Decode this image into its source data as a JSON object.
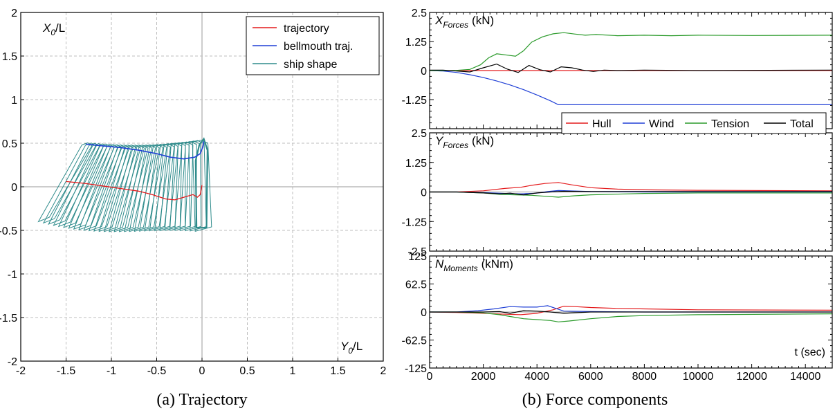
{
  "chart_data": [
    {
      "type": "line",
      "caption": "(a) Trajectory",
      "ylabel_main": "X",
      "ylabel_sub": "0",
      "ylabel_tail": "/L",
      "xlabel_main": "Y",
      "xlabel_sub": "0",
      "xlabel_tail": "/L",
      "xlim": [
        -2,
        2
      ],
      "ylim": [
        -2,
        2
      ],
      "xticks": [
        -2,
        -1.5,
        -1,
        -0.5,
        0,
        0.5,
        1,
        1.5,
        2
      ],
      "yticks": [
        -2,
        -1.5,
        -1,
        -0.5,
        0,
        0.5,
        1,
        1.5,
        2
      ],
      "grid": true,
      "legend_position": "top-right",
      "series": [
        {
          "name": "trajectory",
          "color": "#e41a1c",
          "x": [
            -1.5,
            -1.3,
            -1.1,
            -0.9,
            -0.7,
            -0.55,
            -0.4,
            -0.3,
            -0.2,
            -0.1,
            -0.05,
            -0.02,
            0.0
          ],
          "y": [
            0.06,
            0.04,
            0.01,
            -0.02,
            -0.05,
            -0.09,
            -0.14,
            -0.15,
            -0.12,
            -0.09,
            -0.12,
            -0.09,
            0.02
          ]
        },
        {
          "name": "bellmouth traj.",
          "color": "#1f3fd6",
          "x": [
            -1.28,
            -1.1,
            -0.9,
            -0.7,
            -0.5,
            -0.35,
            -0.2,
            -0.08,
            -0.02,
            0.01,
            0.02
          ],
          "y": [
            0.49,
            0.47,
            0.45,
            0.42,
            0.38,
            0.34,
            0.32,
            0.34,
            0.38,
            0.46,
            0.52
          ]
        },
        {
          "name": "ship shape",
          "color": "#2e8b8b",
          "bow": {
            "x": [
              -1.28,
              -0.03
            ],
            "y": [
              0.5,
              0.53
            ]
          },
          "stern": {
            "x": [
              -1.78,
              -0.02
            ],
            "y": [
              -0.36,
              -0.47
            ]
          },
          "frames": 32
        }
      ]
    },
    {
      "type": "line",
      "caption": "(b) Force components",
      "xlabel": "t (sec)",
      "xlim": [
        0,
        15000
      ],
      "xticks": [
        0,
        2000,
        4000,
        6000,
        8000,
        10000,
        12000,
        14000
      ],
      "legend_position": "top-right",
      "legend": [
        {
          "name": "Hull",
          "color": "#e41a1c"
        },
        {
          "name": "Wind",
          "color": "#1f3fd6"
        },
        {
          "name": "Tension",
          "color": "#2a9a2a"
        },
        {
          "name": "Total",
          "color": "#000000"
        }
      ],
      "panels": [
        {
          "title_main": "X",
          "title_sub": "Forces",
          "title_unit": "(kN)",
          "ylim": [
            -2.5,
            2.5
          ],
          "yticks": [
            -2.5,
            -1.25,
            0,
            1.25,
            2.5
          ],
          "ytick_labels": [
            "",
            "-1.25",
            "0",
            "1.25",
            "2.5"
          ],
          "series": [
            {
              "name": "Hull",
              "color": "#e41a1c",
              "t": [
                0,
                500,
                1000,
                2000,
                3000,
                5000,
                8000,
                15000
              ],
              "v": [
                0,
                0,
                0,
                0,
                0,
                0,
                0,
                0
              ]
            },
            {
              "name": "Wind",
              "color": "#1f3fd6",
              "t": [
                0,
                500,
                1000,
                1500,
                2000,
                2500,
                3000,
                3500,
                4000,
                4500,
                4800,
                6000,
                10000,
                15000
              ],
              "v": [
                0,
                -0.02,
                -0.08,
                -0.18,
                -0.3,
                -0.45,
                -0.62,
                -0.82,
                -1.05,
                -1.3,
                -1.47,
                -1.47,
                -1.47,
                -1.47
              ]
            },
            {
              "name": "Tension",
              "color": "#2a9a2a",
              "t": [
                0,
                500,
                1000,
                1500,
                1900,
                2200,
                2500,
                2800,
                3200,
                3500,
                3800,
                4200,
                4600,
                5000,
                5400,
                5800,
                6200,
                7000,
                8000,
                9000,
                10000,
                12000,
                15000
              ],
              "v": [
                0,
                0,
                0.01,
                0.05,
                0.25,
                0.55,
                0.72,
                0.68,
                0.62,
                0.85,
                1.22,
                1.45,
                1.58,
                1.63,
                1.57,
                1.52,
                1.55,
                1.5,
                1.52,
                1.5,
                1.52,
                1.51,
                1.52
              ]
            },
            {
              "name": "Total",
              "color": "#000000",
              "t": [
                0,
                500,
                1000,
                1500,
                2000,
                2500,
                2900,
                3300,
                3700,
                4100,
                4500,
                4900,
                5300,
                5700,
                6100,
                6500,
                7000,
                8000,
                10000,
                15000
              ],
              "v": [
                0.02,
                0.02,
                -0.02,
                -0.06,
                0.12,
                0.28,
                0.06,
                -0.08,
                0.22,
                0.04,
                -0.06,
                0.16,
                0.12,
                0.02,
                -0.04,
                0.02,
                0.0,
                0.02,
                0.0,
                0.02
              ]
            }
          ]
        },
        {
          "title_main": "Y",
          "title_sub": "Forces",
          "title_unit": "(kN)",
          "ylim": [
            -2.5,
            2.5
          ],
          "yticks": [
            -2.5,
            -1.25,
            0,
            1.25,
            2.5
          ],
          "ytick_labels": [
            "-2.5",
            "-1.25",
            "0",
            "1.25",
            "2.5"
          ],
          "series": [
            {
              "name": "Hull",
              "color": "#e41a1c",
              "t": [
                0,
                1000,
                2000,
                2800,
                3400,
                3800,
                4300,
                4800,
                5300,
                6000,
                7000,
                8000,
                10000,
                15000
              ],
              "v": [
                0,
                0,
                0.05,
                0.15,
                0.2,
                0.28,
                0.36,
                0.4,
                0.3,
                0.18,
                0.12,
                0.09,
                0.07,
                0.05
              ]
            },
            {
              "name": "Wind",
              "color": "#1f3fd6",
              "t": [
                0,
                1000,
                2000,
                2800,
                3400,
                4000,
                4400,
                4800,
                5200,
                6000,
                8000,
                15000
              ],
              "v": [
                0,
                0,
                -0.03,
                -0.06,
                -0.08,
                -0.05,
                0.02,
                0.06,
                0.05,
                0.02,
                0.0,
                0.0
              ]
            },
            {
              "name": "Tension",
              "color": "#2a9a2a",
              "t": [
                0,
                1000,
                2000,
                2600,
                3200,
                3800,
                4300,
                4800,
                5400,
                6000,
                8000,
                10000,
                15000
              ],
              "v": [
                0,
                0,
                -0.04,
                -0.1,
                -0.12,
                -0.14,
                -0.18,
                -0.22,
                -0.16,
                -0.12,
                -0.06,
                -0.04,
                -0.04
              ]
            },
            {
              "name": "Total",
              "color": "#000000",
              "t": [
                0,
                1000,
                2000,
                2600,
                3000,
                3500,
                4000,
                4500,
                5000,
                6000,
                8000,
                15000
              ],
              "v": [
                0,
                0,
                -0.04,
                -0.08,
                -0.05,
                -0.12,
                -0.04,
                0.0,
                0.03,
                0.02,
                0.02,
                0.02
              ]
            }
          ]
        },
        {
          "title_main": "N",
          "title_sub": "Moments",
          "title_unit": "(kNm)",
          "ylim": [
            -125,
            125
          ],
          "yticks": [
            -125,
            -62.5,
            0,
            62.5,
            125
          ],
          "ytick_labels": [
            "-125",
            "-62.5",
            "0",
            "62.5",
            "125"
          ],
          "series": [
            {
              "name": "Hull",
              "color": "#e41a1c",
              "t": [
                0,
                1000,
                2000,
                2800,
                3400,
                4000,
                4600,
                5000,
                5400,
                6000,
                7000,
                8000,
                10000,
                15000
              ],
              "v": [
                0,
                -1,
                -3,
                -5,
                -6,
                -3,
                5,
                13,
                12,
                10,
                8,
                7,
                5,
                4
              ]
            },
            {
              "name": "Wind",
              "color": "#1f3fd6",
              "t": [
                0,
                1000,
                1800,
                2400,
                3000,
                3500,
                4000,
                4400,
                4700,
                5000,
                6000,
                8000,
                15000
              ],
              "v": [
                0,
                0,
                3,
                7,
                12,
                11,
                11,
                14,
                8,
                2,
                1,
                0,
                0
              ]
            },
            {
              "name": "Tension",
              "color": "#2a9a2a",
              "t": [
                0,
                1000,
                2000,
                2600,
                3000,
                3500,
                4000,
                4500,
                4800,
                5200,
                6000,
                7000,
                8000,
                10000,
                15000
              ],
              "v": [
                0,
                0,
                -2,
                -6,
                -10,
                -15,
                -17,
                -19,
                -22,
                -20,
                -15,
                -10,
                -8,
                -6,
                -4
              ]
            },
            {
              "name": "Total",
              "color": "#000000",
              "t": [
                0,
                1000,
                2000,
                2600,
                3000,
                3500,
                4000,
                4500,
                5000,
                6000,
                8000,
                15000
              ],
              "v": [
                0,
                0,
                0,
                1,
                -3,
                3,
                2,
                0,
                -3,
                0,
                0,
                0
              ]
            }
          ]
        }
      ]
    }
  ]
}
